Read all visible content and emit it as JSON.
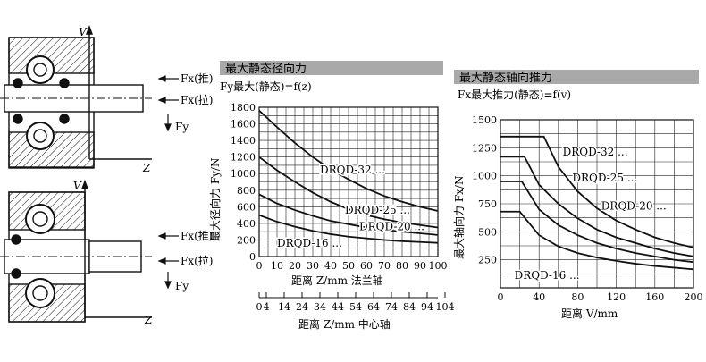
{
  "diagram": {
    "axis_v": "V",
    "axis_z": "Z",
    "forces_top": [
      "Fx(推)",
      "Fx(拉)",
      "Fy"
    ],
    "forces_bottom": [
      "Fx(推)",
      "Fx(拉)",
      "Fy"
    ]
  },
  "chart_data": [
    {
      "type": "line",
      "title": "最大静态径向力",
      "subtitle": "Fy最大(静态)=f(z)",
      "ylabel": "最大径向力 Fy/N",
      "xlabel": "距离 Z/mm  法兰轴",
      "xlabel2": "距离 Z/mm 中心轴",
      "x_ticks": [
        "0",
        "10",
        "20",
        "30",
        "40",
        "50",
        "60",
        "70",
        "80",
        "90",
        "100"
      ],
      "x_ticks2": [
        "0",
        "4",
        "14",
        "24",
        "34",
        "44",
        "54",
        "64",
        "74",
        "84",
        "94",
        "104"
      ],
      "y_ticks": [
        "0",
        "200",
        "400",
        "600",
        "800",
        "1000",
        "1200",
        "1400",
        "1600",
        "1800"
      ],
      "xlim": [
        0,
        100
      ],
      "ylim": [
        0,
        1800
      ],
      "grid": true,
      "series": [
        {
          "name": "DRQD-32",
          "x": [
            0,
            10,
            20,
            30,
            40,
            50,
            60,
            70,
            80,
            90,
            100
          ],
          "y": [
            1760,
            1560,
            1370,
            1200,
            1050,
            930,
            820,
            730,
            660,
            600,
            550
          ]
        },
        {
          "name": "DRQD-25",
          "x": [
            0,
            10,
            20,
            30,
            40,
            50,
            60,
            70,
            80,
            90,
            100
          ],
          "y": [
            1200,
            1040,
            900,
            770,
            660,
            570,
            500,
            450,
            410,
            380,
            350
          ]
        },
        {
          "name": "DRQD-20",
          "x": [
            0,
            10,
            20,
            30,
            40,
            50,
            60,
            70,
            80,
            90,
            100
          ],
          "y": [
            750,
            640,
            560,
            490,
            430,
            390,
            350,
            320,
            300,
            280,
            260
          ]
        },
        {
          "name": "DRQD-16",
          "x": [
            0,
            10,
            20,
            30,
            40,
            50,
            60,
            70,
            80,
            90,
            100
          ],
          "y": [
            500,
            420,
            360,
            310,
            270,
            240,
            220,
            200,
            185,
            175,
            165
          ]
        }
      ]
    },
    {
      "type": "line",
      "title": "最大静态轴向推力",
      "subtitle": "Fx最大推力(静态)=f(v)",
      "ylabel": "最大轴向力 Fx/N",
      "xlabel": "距离 V/mm",
      "x_ticks": [
        "0",
        "40",
        "80",
        "120",
        "160",
        "200"
      ],
      "y_ticks": [
        "250",
        "500",
        "750",
        "1000",
        "1250",
        "1500"
      ],
      "xlim": [
        0,
        200
      ],
      "ylim": [
        0,
        1500
      ],
      "grid": true,
      "series": [
        {
          "name": "DRQD-32",
          "x": [
            0,
            45,
            60,
            80,
            100,
            120,
            140,
            160,
            180,
            200
          ],
          "y": [
            1350,
            1350,
            1080,
            860,
            710,
            600,
            520,
            450,
            400,
            360
          ]
        },
        {
          "name": "DRQD-25",
          "x": [
            0,
            25,
            40,
            60,
            80,
            100,
            120,
            140,
            160,
            180,
            200
          ],
          "y": [
            1170,
            1170,
            920,
            750,
            620,
            520,
            450,
            400,
            350,
            310,
            280
          ]
        },
        {
          "name": "DRQD-20",
          "x": [
            0,
            22,
            40,
            60,
            80,
            100,
            120,
            140,
            160,
            180,
            200
          ],
          "y": [
            950,
            950,
            700,
            560,
            470,
            400,
            350,
            310,
            280,
            250,
            230
          ]
        },
        {
          "name": "DRQD-16",
          "x": [
            0,
            20,
            40,
            60,
            80,
            100,
            120,
            140,
            160,
            180,
            200
          ],
          "y": [
            680,
            680,
            470,
            370,
            310,
            270,
            240,
            215,
            195,
            180,
            165
          ]
        }
      ]
    }
  ]
}
